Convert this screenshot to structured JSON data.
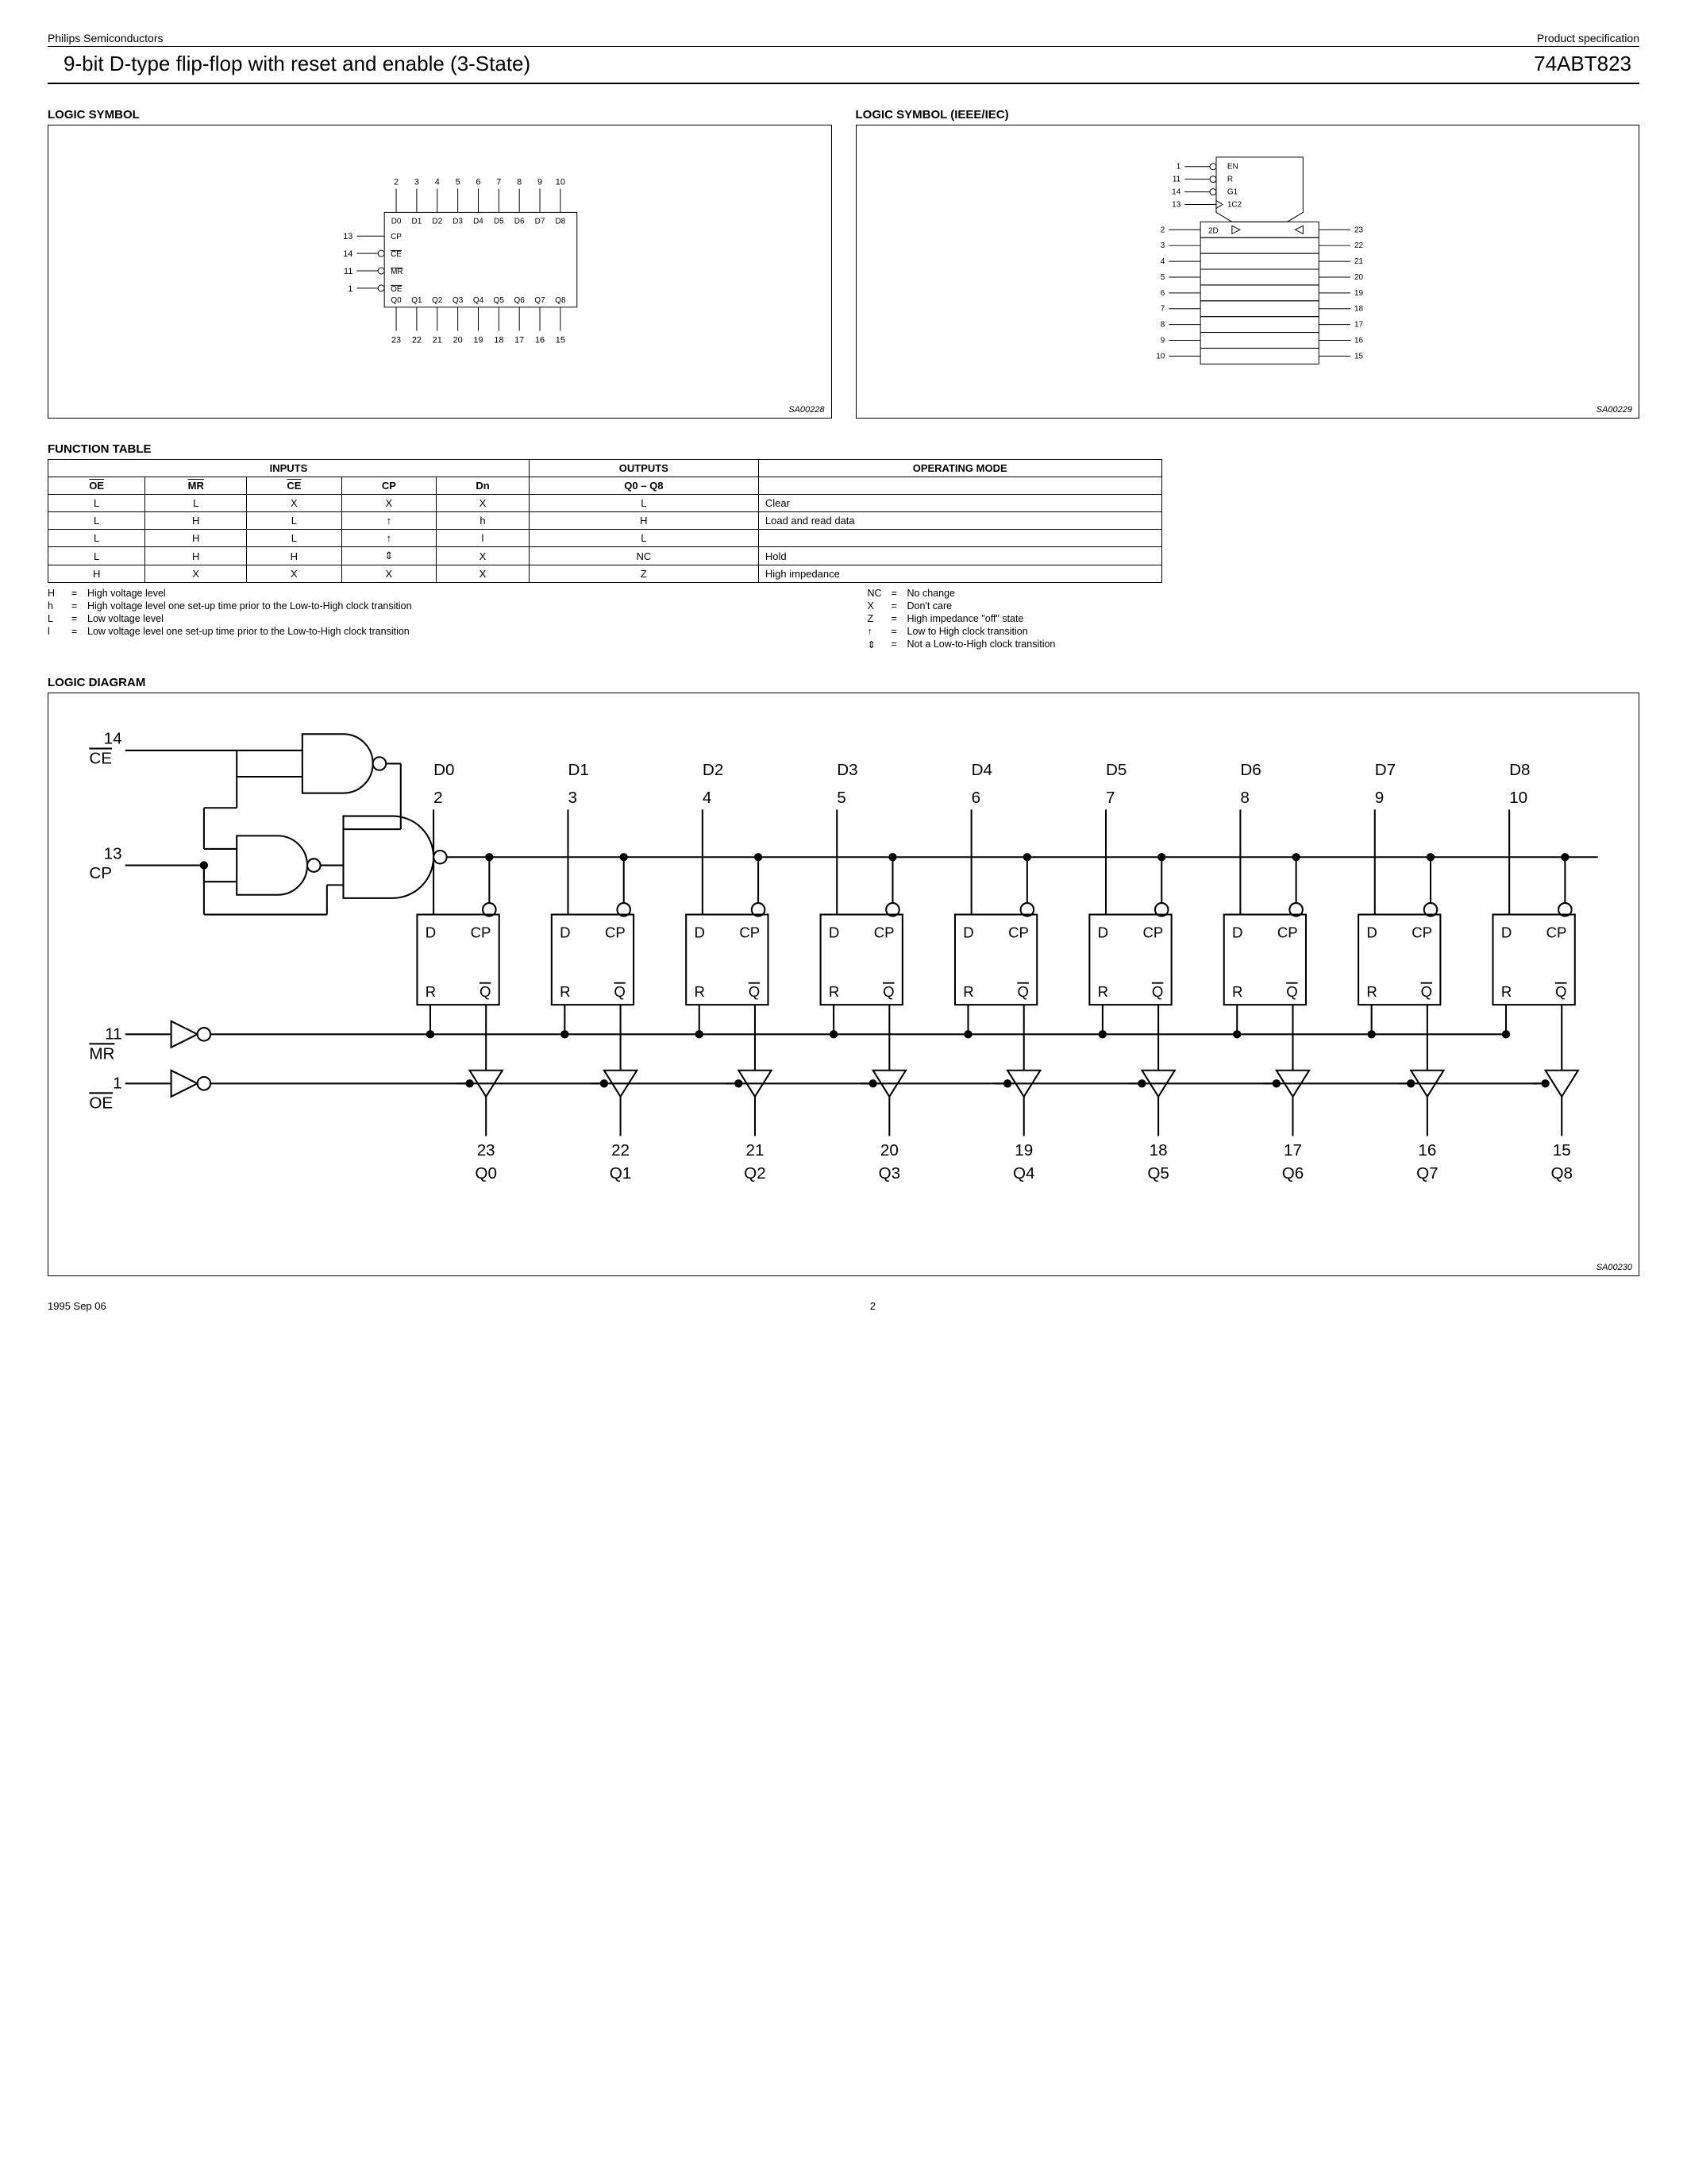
{
  "header": {
    "company": "Philips Semiconductors",
    "doctype": "Product specification",
    "title": "9-bit D-type flip-flop with reset and enable (3-State)",
    "part": "74ABT823"
  },
  "sections": {
    "logic_symbol": "LOGIC SYMBOL",
    "logic_symbol_ieee": "LOGIC SYMBOL (IEEE/IEC)",
    "function_table": "FUNCTION TABLE",
    "logic_diagram": "LOGIC DIAGRAM"
  },
  "logic_symbol": {
    "fig_id": "SA00228",
    "top_pins": [
      "2",
      "3",
      "4",
      "5",
      "6",
      "7",
      "8",
      "9",
      "10"
    ],
    "top_labels": [
      "D0",
      "D1",
      "D2",
      "D3",
      "D4",
      "D5",
      "D6",
      "D7",
      "D8"
    ],
    "left_pins": [
      {
        "num": "13",
        "label": "CP",
        "bubble": false
      },
      {
        "num": "14",
        "label": "CE",
        "bubble": true
      },
      {
        "num": "11",
        "label": "MR",
        "bubble": true
      },
      {
        "num": "1",
        "label": "OE",
        "bubble": true
      }
    ],
    "bottom_labels": [
      "Q0",
      "Q1",
      "Q2",
      "Q3",
      "Q4",
      "Q5",
      "Q6",
      "Q7",
      "Q8"
    ],
    "bottom_pins": [
      "23",
      "22",
      "21",
      "20",
      "19",
      "18",
      "17",
      "16",
      "15"
    ]
  },
  "ieee_symbol": {
    "fig_id": "SA00229",
    "control": [
      {
        "num": "1",
        "label": "EN",
        "bubble": true,
        "tri": false
      },
      {
        "num": "11",
        "label": "R",
        "bubble": true,
        "tri": false
      },
      {
        "num": "14",
        "label": "G1",
        "bubble": true,
        "tri": false
      },
      {
        "num": "13",
        "label": "1C2",
        "bubble": false,
        "tri": true
      }
    ],
    "cell_label": "2D",
    "left_pins": [
      "2",
      "3",
      "4",
      "5",
      "6",
      "7",
      "8",
      "9",
      "10"
    ],
    "right_pins": [
      "23",
      "22",
      "21",
      "20",
      "19",
      "18",
      "17",
      "16",
      "15"
    ]
  },
  "function_table": {
    "header_groups": {
      "inputs": "INPUTS",
      "outputs": "OUTPUTS",
      "mode": "OPERATING MODE"
    },
    "columns": [
      "OE",
      "MR",
      "CE",
      "CP",
      "Dn",
      "Q0 – Q8"
    ],
    "col_overline": [
      true,
      true,
      true,
      false,
      false,
      false
    ],
    "rows": [
      {
        "cells": [
          "L",
          "L",
          "X",
          "X",
          "X",
          "L"
        ],
        "mode": "Clear"
      },
      {
        "cells": [
          "L",
          "H",
          "L",
          "↑",
          "h",
          "H"
        ],
        "mode": "Load and read data"
      },
      {
        "cells": [
          "L",
          "H",
          "L",
          "↑",
          "l",
          "L"
        ],
        "mode": ""
      },
      {
        "cells": [
          "L",
          "H",
          "H",
          "⇕",
          "X",
          "NC"
        ],
        "mode": "Hold"
      },
      {
        "cells": [
          "H",
          "X",
          "X",
          "X",
          "X",
          "Z"
        ],
        "mode": "High impedance"
      }
    ]
  },
  "legend": {
    "left": [
      {
        "sym": "H",
        "desc": "High voltage level"
      },
      {
        "sym": "h",
        "desc": "High voltage level one set-up time prior to the Low-to-High clock transition"
      },
      {
        "sym": "L",
        "desc": "Low voltage level"
      },
      {
        "sym": "l",
        "desc": "Low voltage level one set-up time prior to the Low-to-High clock transition"
      }
    ],
    "right": [
      {
        "sym": "NC",
        "desc": "No change"
      },
      {
        "sym": "X",
        "desc": "Don't care"
      },
      {
        "sym": "Z",
        "desc": "High impedance \"off\" state"
      },
      {
        "sym": "↑",
        "desc": "Low to High clock transition"
      },
      {
        "sym": "⇕",
        "desc": "Not a Low-to-High clock transition"
      }
    ]
  },
  "logic_diagram": {
    "fig_id": "SA00230",
    "inputs_left": [
      {
        "num": "14",
        "label": "CE"
      },
      {
        "num": "13",
        "label": "CP"
      },
      {
        "num": "11",
        "label": "MR"
      },
      {
        "num": "1",
        "label": "OE"
      }
    ],
    "d_labels": [
      "D0",
      "D1",
      "D2",
      "D3",
      "D4",
      "D5",
      "D6",
      "D7",
      "D8"
    ],
    "d_pins": [
      "2",
      "3",
      "4",
      "5",
      "6",
      "7",
      "8",
      "9",
      "10"
    ],
    "q_labels": [
      "Q0",
      "Q1",
      "Q2",
      "Q3",
      "Q4",
      "Q5",
      "Q6",
      "Q7",
      "Q8"
    ],
    "q_pins": [
      "23",
      "22",
      "21",
      "20",
      "19",
      "18",
      "17",
      "16",
      "15"
    ],
    "ff_labels": {
      "D": "D",
      "CP": "CP",
      "R": "R",
      "Q": "Q"
    }
  },
  "footer": {
    "date": "1995 Sep 06",
    "page": "2"
  }
}
